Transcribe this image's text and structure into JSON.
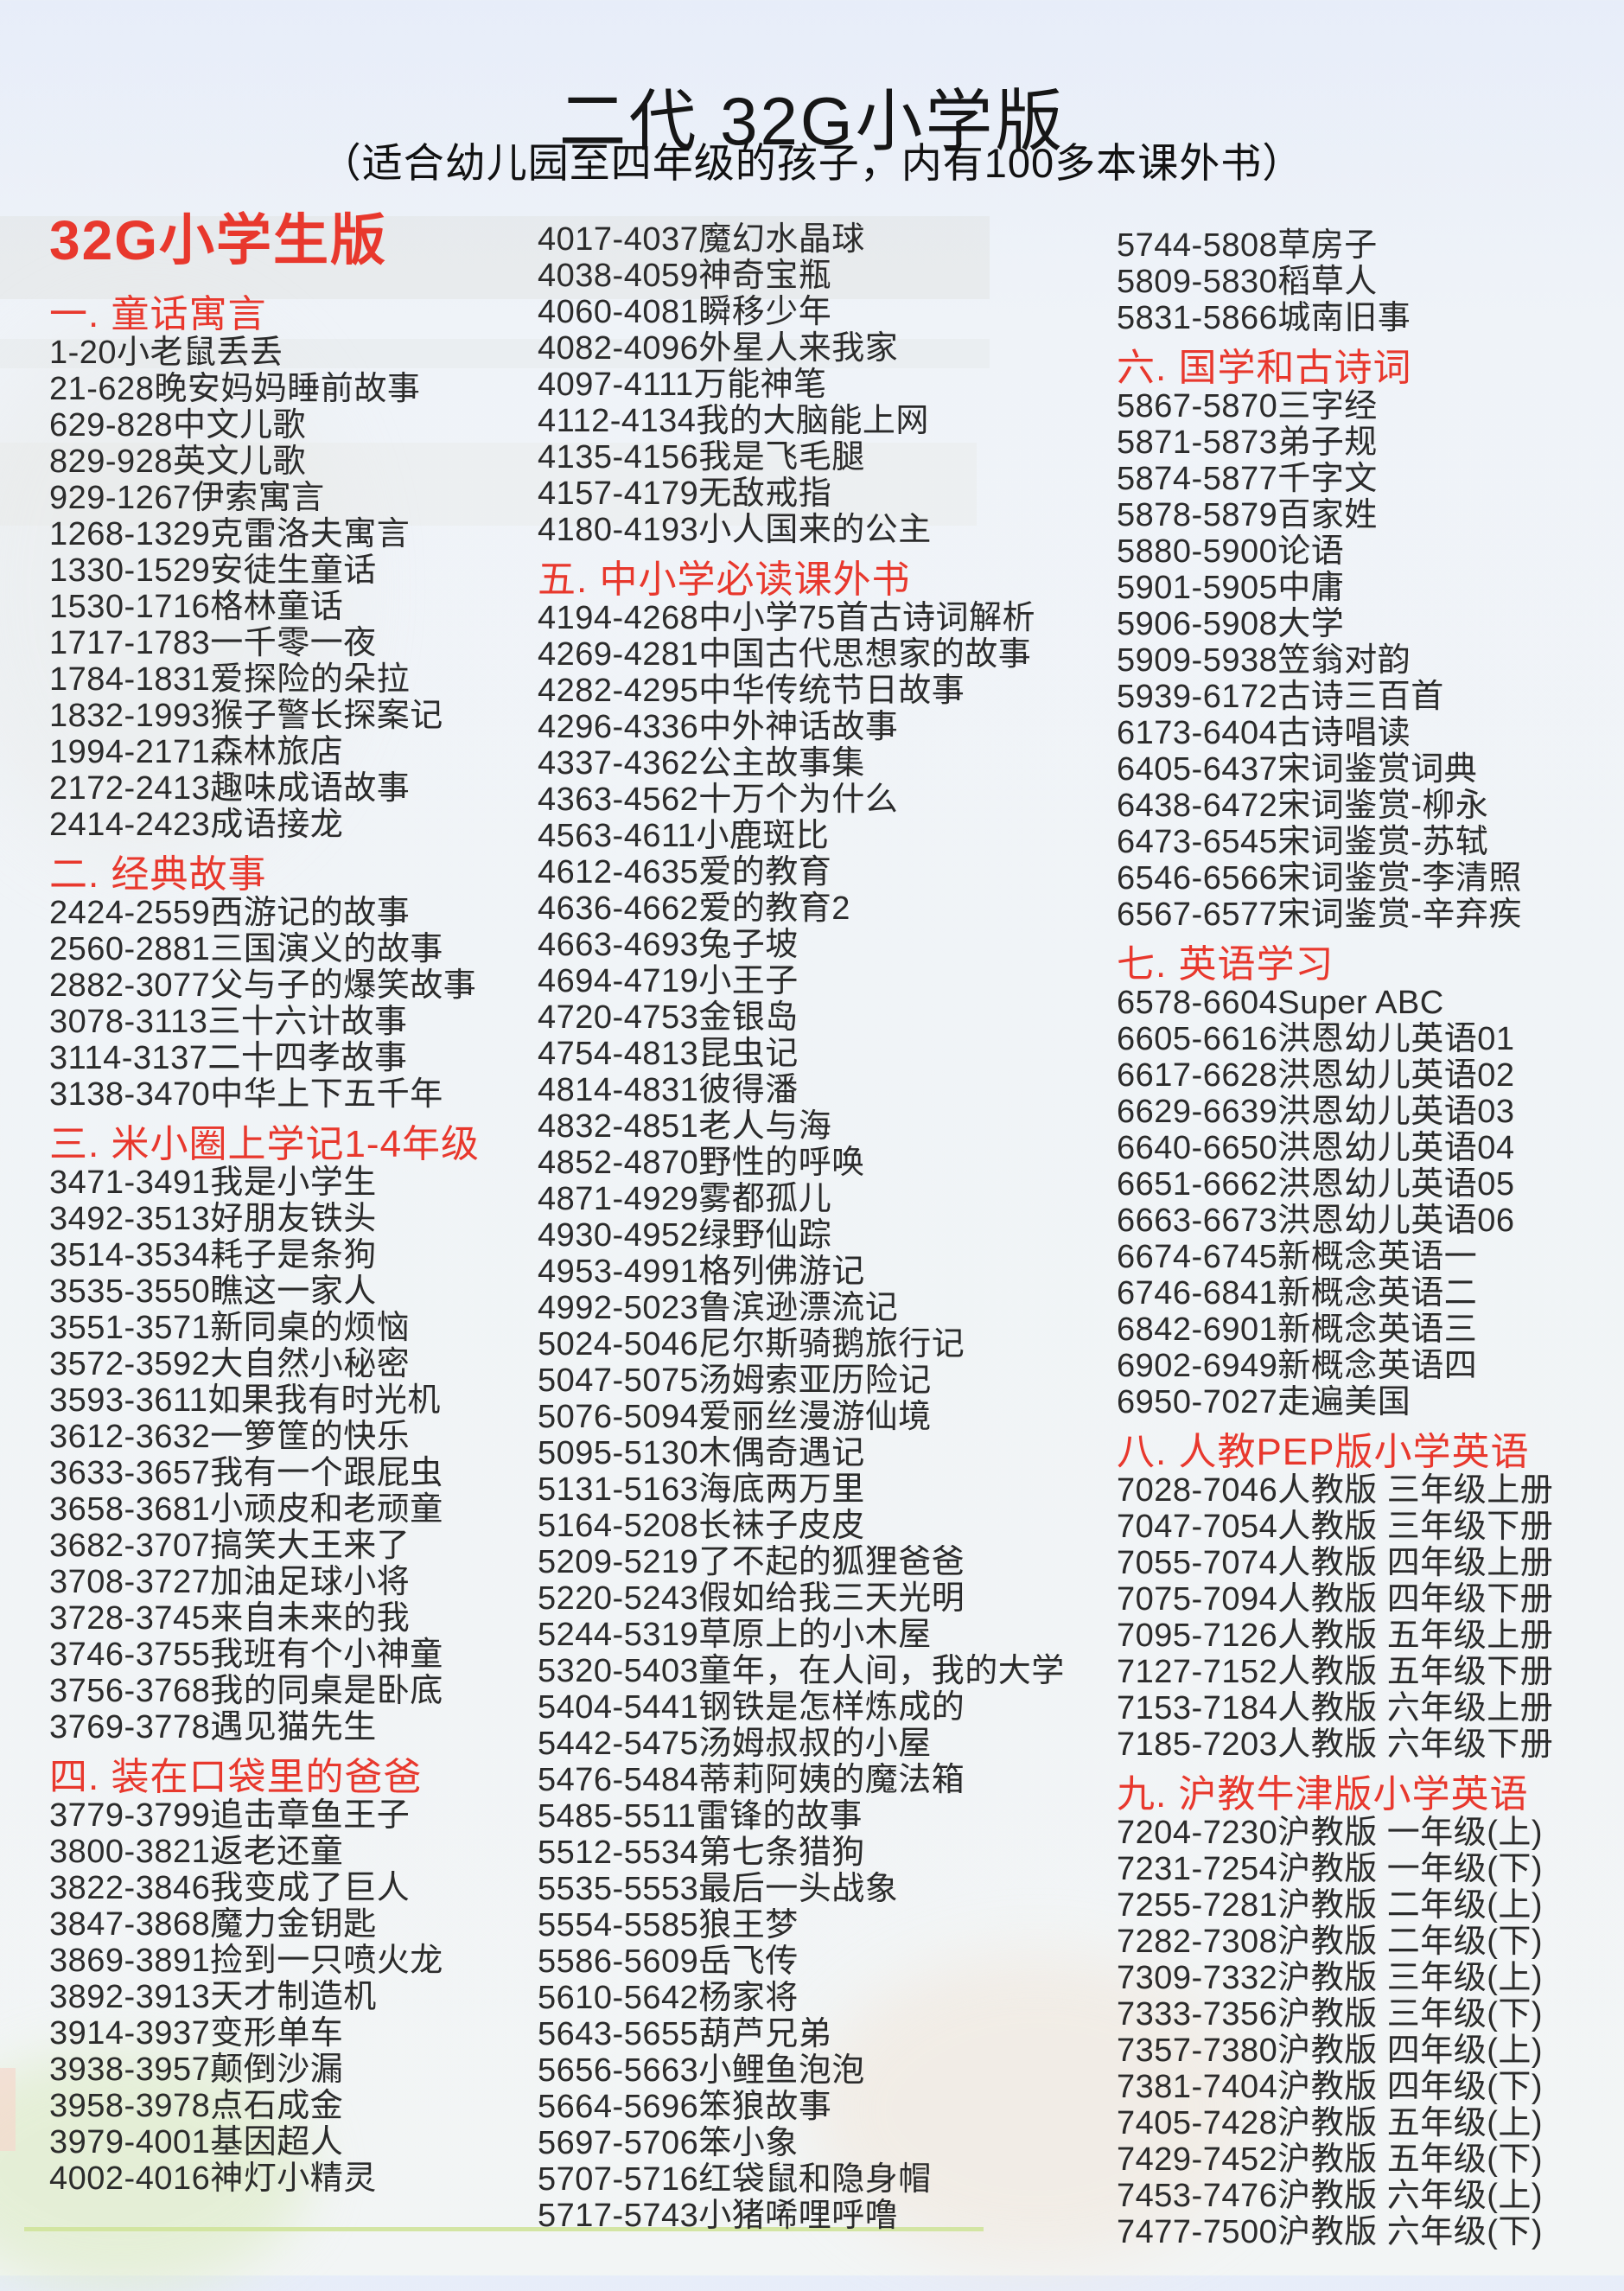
{
  "header": {
    "title": "二代 32G小学版",
    "subtitle": "（适合幼儿园至四年级的孩子，内有100多本课外书）"
  },
  "colors": {
    "accent_red": "#e8382d",
    "body_text": "#2b2b2b",
    "background_top": "#e7edf9",
    "grass_line": "#cfe39b"
  },
  "columns": [
    {
      "blocks": [
        {
          "type": "badge",
          "text": "32G小学生版"
        },
        {
          "type": "section",
          "text": "一. 童话寓言"
        },
        {
          "type": "item",
          "text": "1-20小老鼠丢丢"
        },
        {
          "type": "item",
          "text": "21-628晚安妈妈睡前故事"
        },
        {
          "type": "item",
          "text": "629-828中文儿歌"
        },
        {
          "type": "item",
          "text": "829-928英文儿歌"
        },
        {
          "type": "item",
          "text": "929-1267伊索寓言"
        },
        {
          "type": "item",
          "text": "1268-1329克雷洛夫寓言"
        },
        {
          "type": "item",
          "text": "1330-1529安徒生童话"
        },
        {
          "type": "item",
          "text": "1530-1716格林童话"
        },
        {
          "type": "item",
          "text": "1717-1783一千零一夜"
        },
        {
          "type": "item",
          "text": "1784-1831爱探险的朵拉"
        },
        {
          "type": "item",
          "text": "1832-1993猴子警长探案记"
        },
        {
          "type": "item",
          "text": "1994-2171森林旅店"
        },
        {
          "type": "item",
          "text": "2172-2413趣味成语故事"
        },
        {
          "type": "item",
          "text": "2414-2423成语接龙"
        },
        {
          "type": "section",
          "text": "二. 经典故事"
        },
        {
          "type": "item",
          "text": "2424-2559西游记的故事"
        },
        {
          "type": "item",
          "text": "2560-2881三国演义的故事"
        },
        {
          "type": "item",
          "text": "2882-3077父与子的爆笑故事"
        },
        {
          "type": "item",
          "text": "3078-3113三十六计故事"
        },
        {
          "type": "item",
          "text": "3114-3137二十四孝故事"
        },
        {
          "type": "item",
          "text": "3138-3470中华上下五千年"
        },
        {
          "type": "section",
          "text": "三. 米小圈上学记1-4年级"
        },
        {
          "type": "item",
          "text": "3471-3491我是小学生"
        },
        {
          "type": "item",
          "text": "3492-3513好朋友铁头"
        },
        {
          "type": "item",
          "text": "3514-3534耗子是条狗"
        },
        {
          "type": "item",
          "text": "3535-3550瞧这一家人"
        },
        {
          "type": "item",
          "text": "3551-3571新同桌的烦恼"
        },
        {
          "type": "item",
          "text": "3572-3592大自然小秘密"
        },
        {
          "type": "item",
          "text": "3593-3611如果我有时光机"
        },
        {
          "type": "item",
          "text": "3612-3632一箩筐的快乐"
        },
        {
          "type": "item",
          "text": "3633-3657我有一个跟屁虫"
        },
        {
          "type": "item",
          "text": "3658-3681小顽皮和老顽童"
        },
        {
          "type": "item",
          "text": "3682-3707搞笑大王来了"
        },
        {
          "type": "item",
          "text": "3708-3727加油足球小将"
        },
        {
          "type": "item",
          "text": "3728-3745来自未来的我"
        },
        {
          "type": "item",
          "text": "3746-3755我班有个小神童"
        },
        {
          "type": "item",
          "text": "3756-3768我的同桌是卧底"
        },
        {
          "type": "item",
          "text": "3769-3778遇见猫先生"
        },
        {
          "type": "section",
          "text": "四. 装在口袋里的爸爸"
        },
        {
          "type": "item",
          "text": "3779-3799追击章鱼王子"
        },
        {
          "type": "item",
          "text": "3800-3821返老还童"
        },
        {
          "type": "item",
          "text": "3822-3846我变成了巨人"
        },
        {
          "type": "item",
          "text": "3847-3868魔力金钥匙"
        },
        {
          "type": "item",
          "text": "3869-3891捡到一只喷火龙"
        },
        {
          "type": "item",
          "text": "3892-3913天才制造机"
        },
        {
          "type": "item",
          "text": "3914-3937变形单车"
        },
        {
          "type": "item",
          "text": "3938-3957颠倒沙漏"
        },
        {
          "type": "item",
          "text": "3958-3978点石成金"
        },
        {
          "type": "item",
          "text": "3979-4001基因超人"
        },
        {
          "type": "item",
          "text": "4002-4016神灯小精灵"
        }
      ]
    },
    {
      "blocks": [
        {
          "type": "item",
          "text": "4017-4037魔幻水晶球"
        },
        {
          "type": "item",
          "text": "4038-4059神奇宝瓶"
        },
        {
          "type": "item",
          "text": "4060-4081瞬移少年"
        },
        {
          "type": "item",
          "text": "4082-4096外星人来我家"
        },
        {
          "type": "item",
          "text": "4097-4111万能神笔"
        },
        {
          "type": "item",
          "text": "4112-4134我的大脑能上网"
        },
        {
          "type": "item",
          "text": "4135-4156我是飞毛腿"
        },
        {
          "type": "item",
          "text": "4157-4179无敌戒指"
        },
        {
          "type": "item",
          "text": "4180-4193小人国来的公主"
        },
        {
          "type": "section",
          "text": "五. 中小学必读课外书"
        },
        {
          "type": "item",
          "text": "4194-4268中小学75首古诗词解析"
        },
        {
          "type": "item",
          "text": "4269-4281中国古代思想家的故事"
        },
        {
          "type": "item",
          "text": "4282-4295中华传统节日故事"
        },
        {
          "type": "item",
          "text": "4296-4336中外神话故事"
        },
        {
          "type": "item",
          "text": "4337-4362公主故事集"
        },
        {
          "type": "item",
          "text": "4363-4562十万个为什么"
        },
        {
          "type": "item",
          "text": "4563-4611小鹿斑比"
        },
        {
          "type": "item",
          "text": "4612-4635爱的教育"
        },
        {
          "type": "item",
          "text": "4636-4662爱的教育2"
        },
        {
          "type": "item",
          "text": "4663-4693兔子坡"
        },
        {
          "type": "item",
          "text": "4694-4719小王子"
        },
        {
          "type": "item",
          "text": "4720-4753金银岛"
        },
        {
          "type": "item",
          "text": "4754-4813昆虫记"
        },
        {
          "type": "item",
          "text": "4814-4831彼得潘"
        },
        {
          "type": "item",
          "text": "4832-4851老人与海"
        },
        {
          "type": "item",
          "text": "4852-4870野性的呼唤"
        },
        {
          "type": "item",
          "text": "4871-4929雾都孤儿"
        },
        {
          "type": "item",
          "text": "4930-4952绿野仙踪"
        },
        {
          "type": "item",
          "text": "4953-4991格列佛游记"
        },
        {
          "type": "item",
          "text": "4992-5023鲁滨逊漂流记"
        },
        {
          "type": "item",
          "text": "5024-5046尼尔斯骑鹅旅行记"
        },
        {
          "type": "item",
          "text": "5047-5075汤姆索亚历险记"
        },
        {
          "type": "item",
          "text": "5076-5094爱丽丝漫游仙境"
        },
        {
          "type": "item",
          "text": "5095-5130木偶奇遇记"
        },
        {
          "type": "item",
          "text": "5131-5163海底两万里"
        },
        {
          "type": "item",
          "text": "5164-5208长袜子皮皮"
        },
        {
          "type": "item",
          "text": "5209-5219了不起的狐狸爸爸"
        },
        {
          "type": "item",
          "text": "5220-5243假如给我三天光明"
        },
        {
          "type": "item",
          "text": "5244-5319草原上的小木屋"
        },
        {
          "type": "item",
          "text": "5320-5403童年，在人间，我的大学"
        },
        {
          "type": "item",
          "text": "5404-5441钢铁是怎样炼成的"
        },
        {
          "type": "item",
          "text": "5442-5475汤姆叔叔的小屋"
        },
        {
          "type": "item",
          "text": "5476-5484蒂莉阿姨的魔法箱"
        },
        {
          "type": "item",
          "text": "5485-5511雷锋的故事"
        },
        {
          "type": "item",
          "text": "5512-5534第七条猎狗"
        },
        {
          "type": "item",
          "text": "5535-5553最后一头战象"
        },
        {
          "type": "item",
          "text": "5554-5585狼王梦"
        },
        {
          "type": "item",
          "text": "5586-5609岳飞传"
        },
        {
          "type": "item",
          "text": "5610-5642杨家将"
        },
        {
          "type": "item",
          "text": "5643-5655葫芦兄弟"
        },
        {
          "type": "item",
          "text": "5656-5663小鲤鱼泡泡"
        },
        {
          "type": "item",
          "text": "5664-5696笨狼故事"
        },
        {
          "type": "item",
          "text": "5697-5706笨小象"
        },
        {
          "type": "item",
          "text": "5707-5716红袋鼠和隐身帽"
        },
        {
          "type": "item",
          "text": "5717-5743小猪唏哩呼噜"
        }
      ]
    },
    {
      "blocks": [
        {
          "type": "item",
          "text": "5744-5808草房子"
        },
        {
          "type": "item",
          "text": "5809-5830稻草人"
        },
        {
          "type": "item",
          "text": "5831-5866城南旧事"
        },
        {
          "type": "section",
          "text": "六. 国学和古诗词"
        },
        {
          "type": "item",
          "text": "5867-5870三字经"
        },
        {
          "type": "item",
          "text": "5871-5873弟子规"
        },
        {
          "type": "item",
          "text": "5874-5877千字文"
        },
        {
          "type": "item",
          "text": "5878-5879百家姓"
        },
        {
          "type": "item",
          "text": "5880-5900论语"
        },
        {
          "type": "item",
          "text": "5901-5905中庸"
        },
        {
          "type": "item",
          "text": "5906-5908大学"
        },
        {
          "type": "item",
          "text": "5909-5938笠翁对韵"
        },
        {
          "type": "item",
          "text": "5939-6172古诗三百首"
        },
        {
          "type": "item",
          "text": "6173-6404古诗唱读"
        },
        {
          "type": "item",
          "text": "6405-6437宋词鉴赏词典"
        },
        {
          "type": "item",
          "text": "6438-6472宋词鉴赏-柳永"
        },
        {
          "type": "item",
          "text": "6473-6545宋词鉴赏-苏轼"
        },
        {
          "type": "item",
          "text": "6546-6566宋词鉴赏-李清照"
        },
        {
          "type": "item",
          "text": "6567-6577宋词鉴赏-辛弃疾"
        },
        {
          "type": "section",
          "text": "七. 英语学习"
        },
        {
          "type": "item",
          "text": "6578-6604Super ABC"
        },
        {
          "type": "item",
          "text": "6605-6616洪恩幼儿英语01"
        },
        {
          "type": "item",
          "text": "6617-6628洪恩幼儿英语02"
        },
        {
          "type": "item",
          "text": "6629-6639洪恩幼儿英语03"
        },
        {
          "type": "item",
          "text": "6640-6650洪恩幼儿英语04"
        },
        {
          "type": "item",
          "text": "6651-6662洪恩幼儿英语05"
        },
        {
          "type": "item",
          "text": "6663-6673洪恩幼儿英语06"
        },
        {
          "type": "item",
          "text": "6674-6745新概念英语一"
        },
        {
          "type": "item",
          "text": "6746-6841新概念英语二"
        },
        {
          "type": "item",
          "text": "6842-6901新概念英语三"
        },
        {
          "type": "item",
          "text": "6902-6949新概念英语四"
        },
        {
          "type": "item",
          "text": "6950-7027走遍美国"
        },
        {
          "type": "section",
          "text": "八. 人教PEP版小学英语"
        },
        {
          "type": "item",
          "text": "7028-7046人教版 三年级上册"
        },
        {
          "type": "item",
          "text": "7047-7054人教版 三年级下册"
        },
        {
          "type": "item",
          "text": "7055-7074人教版 四年级上册"
        },
        {
          "type": "item",
          "text": "7075-7094人教版 四年级下册"
        },
        {
          "type": "item",
          "text": "7095-7126人教版 五年级上册"
        },
        {
          "type": "item",
          "text": "7127-7152人教版 五年级下册"
        },
        {
          "type": "item",
          "text": "7153-7184人教版 六年级上册"
        },
        {
          "type": "item",
          "text": "7185-7203人教版 六年级下册"
        },
        {
          "type": "section",
          "text": "九. 沪教牛津版小学英语"
        },
        {
          "type": "item",
          "text": "7204-7230沪教版 一年级(上)"
        },
        {
          "type": "item",
          "text": "7231-7254沪教版 一年级(下)"
        },
        {
          "type": "item",
          "text": "7255-7281沪教版 二年级(上)"
        },
        {
          "type": "item",
          "text": "7282-7308沪教版 二年级(下)"
        },
        {
          "type": "item",
          "text": "7309-7332沪教版 三年级(上)"
        },
        {
          "type": "item",
          "text": "7333-7356沪教版 三年级(下)"
        },
        {
          "type": "item",
          "text": "7357-7380沪教版 四年级(上)"
        },
        {
          "type": "item",
          "text": "7381-7404沪教版 四年级(下)"
        },
        {
          "type": "item",
          "text": "7405-7428沪教版 五年级(上)"
        },
        {
          "type": "item",
          "text": "7429-7452沪教版 五年级(下)"
        },
        {
          "type": "item",
          "text": "7453-7476沪教版 六年级(上)"
        },
        {
          "type": "item",
          "text": "7477-7500沪教版 六年级(下)"
        }
      ]
    }
  ]
}
